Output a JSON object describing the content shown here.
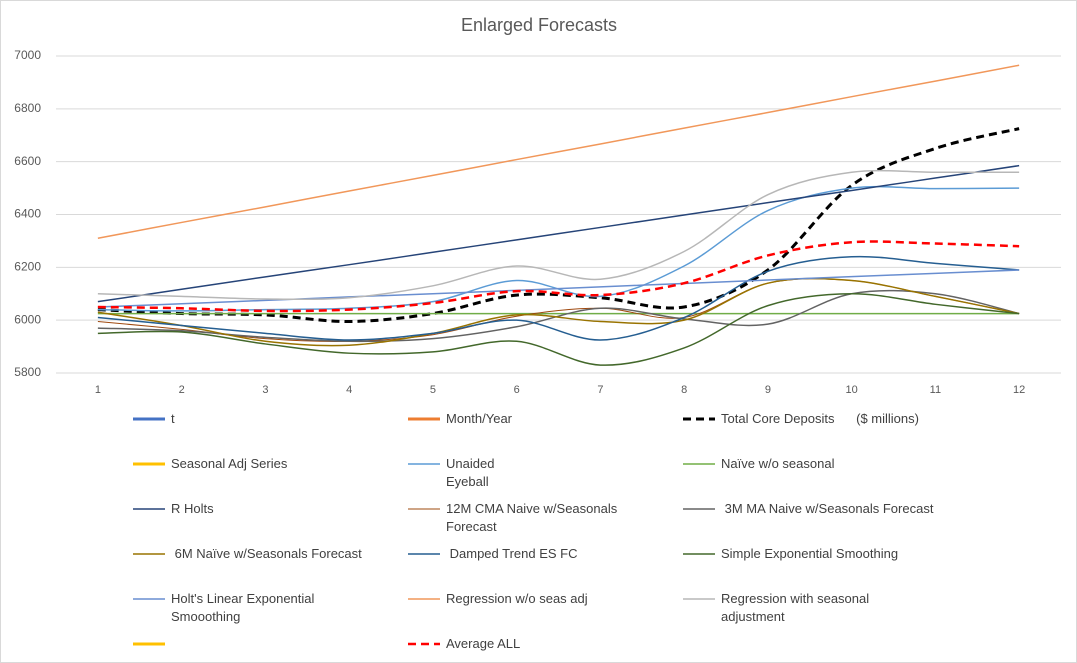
{
  "chart_data": {
    "type": "line",
    "title": "Enlarged Forecasts",
    "categories": [
      "1",
      "2",
      "3",
      "4",
      "5",
      "6",
      "7",
      "8",
      "9",
      "10",
      "11",
      "12"
    ],
    "ylim": [
      5800,
      7000
    ],
    "yticks": [
      5800,
      6000,
      6200,
      6400,
      6600,
      6800,
      7000
    ],
    "grid": true,
    "series": [
      {
        "name": "t",
        "color": "#4472c4",
        "line_width": 3
      },
      {
        "name": "Month/Year",
        "color": "#ed7d31",
        "line_width": 3
      },
      {
        "name": "Total Core Deposits      ($ millions)",
        "color": "#000000",
        "line_width": 3,
        "dashed": true,
        "values": [
          6040,
          6025,
          6020,
          5995,
          6025,
          6095,
          6085,
          6050,
          6190,
          6510,
          6650,
          6725
        ]
      },
      {
        "name": "Seasonal Adj Series",
        "color": "#ffc000",
        "line_width": 3
      },
      {
        "name": "Unaided\nEyeball",
        "color": "#5b9bd5",
        "line_width": 1.5,
        "values": [
          6040,
          6035,
          6040,
          6045,
          6070,
          6150,
          6090,
          6205,
          6415,
          6500,
          6498,
          6500
        ]
      },
      {
        "name": "Naïve w/o seasonal",
        "color": "#70ad47",
        "line_width": 1.5,
        "values": [
          6025,
          6025,
          6025,
          6025,
          6025,
          6025,
          6025,
          6025,
          6025,
          6025,
          6025,
          6025
        ]
      },
      {
        "name": "R Holts",
        "color": "#264478",
        "line_width": 1.5,
        "values": [
          6070,
          6117,
          6164,
          6210,
          6257,
          6304,
          6351,
          6398,
          6445,
          6491,
          6538,
          6585
        ]
      },
      {
        "name": "12M CMA Naive w/Seasonals Forecast",
        "color": "#9e480e",
        "line_width": 1,
        "values": [
          5995,
          5965,
          5930,
          5920,
          5945,
          6015,
          6045,
          6010,
          6140,
          6150,
          6090,
          6025
        ]
      },
      {
        "name": " 3M MA Naive w/Seasonals Forecast",
        "color": "#636363",
        "line_width": 1.5,
        "values": [
          5970,
          5960,
          5935,
          5920,
          5930,
          5975,
          6045,
          6005,
          5985,
          6100,
          6100,
          6025
        ]
      },
      {
        "name": " 6M Naïve w/Seasonals Forecast",
        "color": "#997300",
        "line_width": 1.5,
        "values": [
          6030,
          5980,
          5920,
          5905,
          5950,
          6020,
          5995,
          6000,
          6140,
          6150,
          6090,
          6025
        ]
      },
      {
        "name": " Damped Trend ES FC",
        "color": "#255e91",
        "line_width": 1.5,
        "values": [
          6010,
          5980,
          5950,
          5925,
          5950,
          6000,
          5925,
          6010,
          6185,
          6240,
          6215,
          6190
        ]
      },
      {
        "name": "Simple Exponential Smoothing",
        "color": "#43682b",
        "line_width": 1.5,
        "values": [
          5950,
          5955,
          5910,
          5875,
          5880,
          5920,
          5830,
          5895,
          6055,
          6100,
          6060,
          6025
        ]
      },
      {
        "name": "Holt's Linear Exponential Smooothing",
        "color": "#698ed0",
        "line_width": 1.5,
        "values": [
          6050,
          6062,
          6075,
          6088,
          6100,
          6113,
          6126,
          6139,
          6152,
          6165,
          6177,
          6190
        ]
      },
      {
        "name": "Regression w/o seas adj",
        "color": "#f1975a",
        "line_width": 1.5,
        "values": [
          6310,
          6370,
          6429,
          6489,
          6548,
          6608,
          6667,
          6727,
          6786,
          6846,
          6905,
          6965
        ]
      },
      {
        "name": "Regression with seasonal adjustment",
        "color": "#b7b7b7",
        "line_width": 1.5,
        "values": [
          6100,
          6090,
          6080,
          6085,
          6130,
          6205,
          6155,
          6260,
          6475,
          6560,
          6560,
          6560
        ]
      },
      {
        "color": "#ffc000",
        "line_width": 3
      },
      {
        "name": "Average ALL",
        "color": "#ff0000",
        "line_width": 2.5,
        "dashed": true,
        "values": [
          6050,
          6045,
          6035,
          6040,
          6065,
          6110,
          6095,
          6140,
          6245,
          6295,
          6290,
          6280
        ]
      }
    ]
  }
}
